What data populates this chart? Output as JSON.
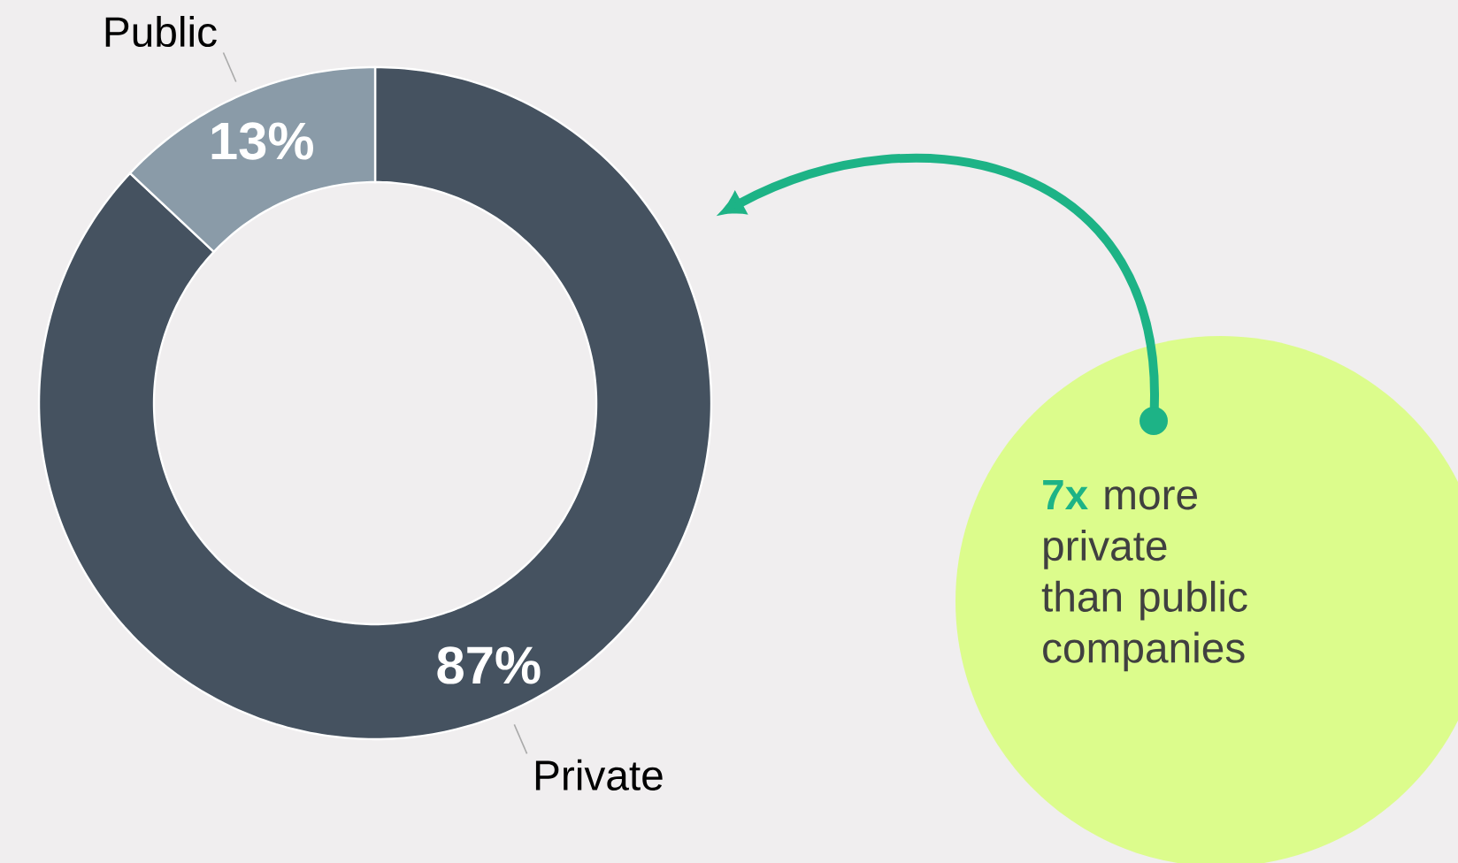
{
  "chart_data": {
    "type": "donut",
    "categories": [
      "Private",
      "Public"
    ],
    "values": [
      87,
      13
    ],
    "colors": [
      "#455260",
      "#8a9ba8"
    ],
    "value_labels": [
      "87%",
      "13%"
    ],
    "annotations": [
      "**7x** more private than public companies"
    ]
  }
}
